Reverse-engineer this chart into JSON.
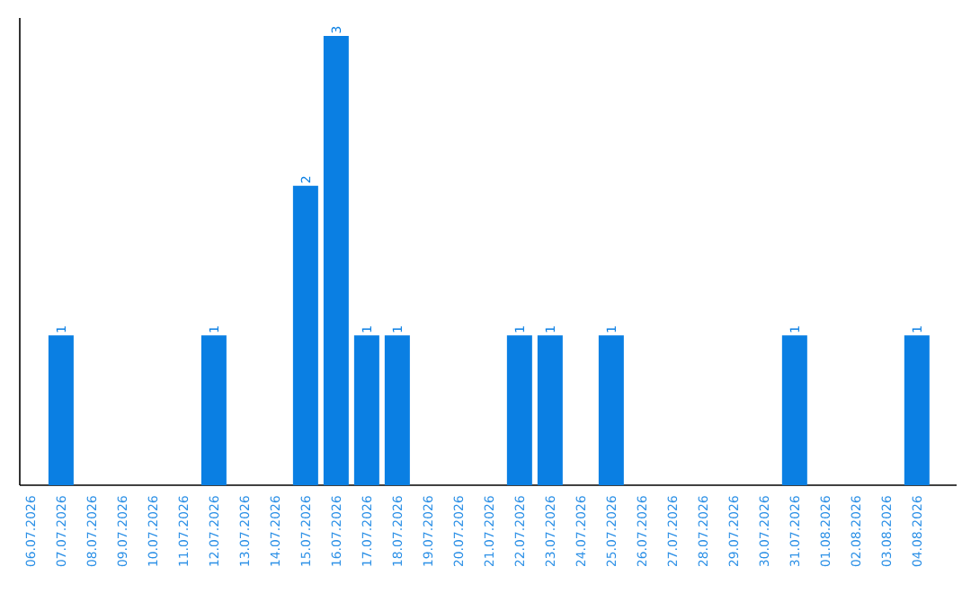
{
  "chart_data": {
    "type": "bar",
    "categories": [
      "06.07.2026",
      "07.07.2026",
      "08.07.2026",
      "09.07.2026",
      "10.07.2026",
      "11.07.2026",
      "12.07.2026",
      "13.07.2026",
      "14.07.2026",
      "15.07.2026",
      "16.07.2026",
      "17.07.2026",
      "18.07.2026",
      "19.07.2026",
      "20.07.2026",
      "21.07.2026",
      "22.07.2026",
      "23.07.2026",
      "24.07.2026",
      "25.07.2026",
      "26.07.2026",
      "27.07.2026",
      "28.07.2026",
      "29.07.2026",
      "30.07.2026",
      "31.07.2026",
      "01.08.2026",
      "02.08.2026",
      "03.08.2026",
      "04.08.2026"
    ],
    "values": [
      0,
      1,
      0,
      0,
      0,
      0,
      1,
      0,
      0,
      2,
      3,
      1,
      1,
      0,
      0,
      0,
      1,
      1,
      0,
      1,
      0,
      0,
      0,
      0,
      0,
      1,
      0,
      0,
      0,
      1
    ],
    "value_labels": [
      null,
      "1",
      null,
      null,
      null,
      null,
      "1",
      null,
      null,
      "2",
      "3",
      "1",
      "1",
      null,
      null,
      null,
      "1",
      "1",
      null,
      "1",
      null,
      null,
      null,
      null,
      null,
      "1",
      null,
      null,
      null,
      "1"
    ],
    "color": "#0a7fe3",
    "tick_labels": "x"
  }
}
